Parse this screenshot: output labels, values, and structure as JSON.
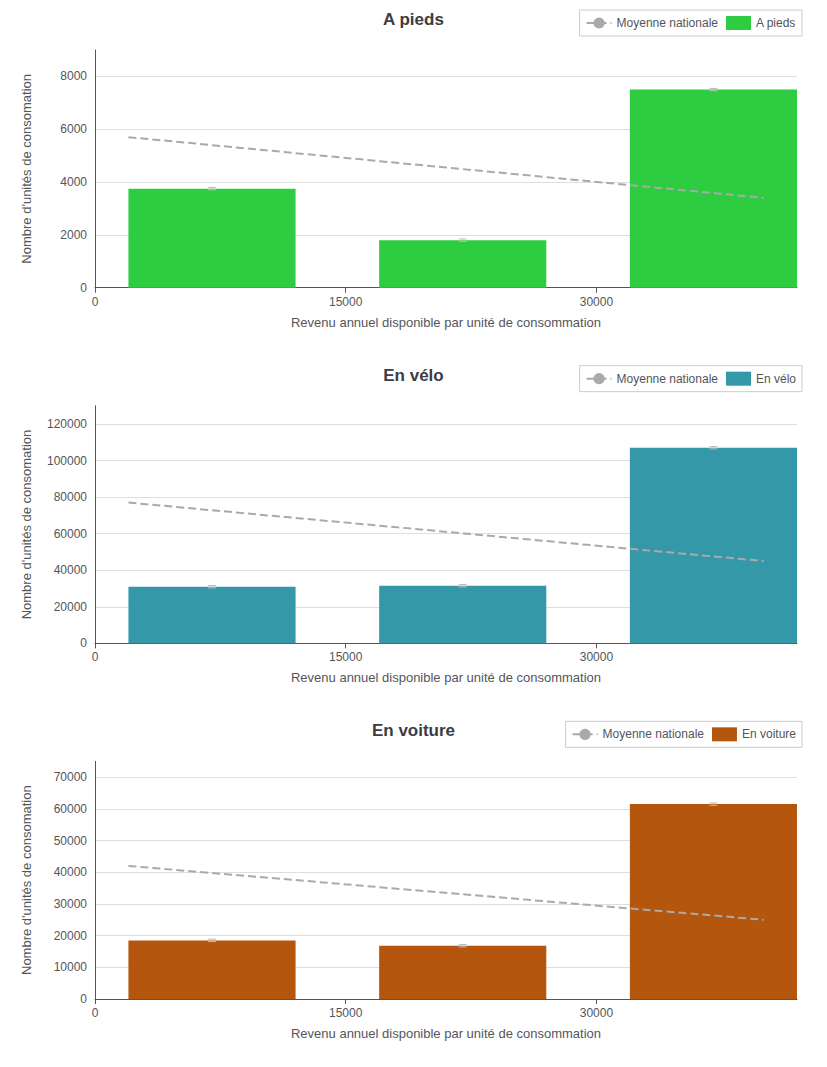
{
  "chart_data": [
    {
      "type": "bar",
      "title": "A pieds",
      "xlabel": "Revenu annuel disponible par unité de consommation",
      "ylabel": "Nombre d'unités de consomation",
      "xlim": [
        0,
        42000
      ],
      "ylim": [
        0,
        9000
      ],
      "xticks": [
        0,
        15000,
        30000
      ],
      "yticks": [
        0,
        2000,
        4000,
        6000,
        8000
      ],
      "grid": true,
      "legend": "upper right",
      "series": [
        {
          "name": "Moyenne nationale",
          "type": "line",
          "line_style": "dashed",
          "color": "#aaaaaa",
          "x": [
            2000,
            40000
          ],
          "values": [
            5700,
            3400
          ]
        },
        {
          "name": "A pieds",
          "type": "bar",
          "color": "#2ecc40",
          "x": [
            7000,
            22000,
            37000
          ],
          "widths": [
            10000,
            10000,
            10000
          ],
          "values": [
            3750,
            1800,
            7500
          ],
          "errors": [
            45,
            45,
            45
          ]
        }
      ]
    },
    {
      "type": "bar",
      "title": "En vélo",
      "xlabel": "Revenu annuel disponible par unité de consommation",
      "ylabel": "Nombre d'unités de consomation",
      "xlim": [
        0,
        42000
      ],
      "ylim": [
        0,
        130000
      ],
      "xticks": [
        0,
        15000,
        30000
      ],
      "yticks": [
        0,
        20000,
        40000,
        60000,
        80000,
        100000,
        120000
      ],
      "grid": true,
      "legend": "upper right",
      "series": [
        {
          "name": "Moyenne nationale",
          "type": "line",
          "line_style": "dashed",
          "color": "#aaaaaa",
          "x": [
            2000,
            40000
          ],
          "values": [
            77000,
            45000
          ]
        },
        {
          "name": "En vélo",
          "type": "bar",
          "color": "#3498a8",
          "x": [
            7000,
            22000,
            37000
          ],
          "widths": [
            10000,
            10000,
            10000
          ],
          "values": [
            31000,
            31500,
            107000
          ],
          "errors": [
            650,
            650,
            650
          ]
        }
      ]
    },
    {
      "type": "bar",
      "title": "En voiture",
      "xlabel": "Revenu annuel disponible par unité de consommation",
      "ylabel": "Nombre d'unités de consomation",
      "xlim": [
        0,
        42000
      ],
      "ylim": [
        0,
        75000
      ],
      "xticks": [
        0,
        15000,
        30000
      ],
      "yticks": [
        0,
        10000,
        20000,
        30000,
        40000,
        50000,
        60000,
        70000
      ],
      "grid": true,
      "legend": "upper right",
      "series": [
        {
          "name": "Moyenne nationale",
          "type": "line",
          "line_style": "dashed",
          "color": "#aaaaaa",
          "x": [
            2000,
            40000
          ],
          "values": [
            42000,
            25000
          ]
        },
        {
          "name": "En voiture",
          "type": "bar",
          "color": "#b5560e",
          "x": [
            7000,
            22000,
            37000
          ],
          "widths": [
            10000,
            10000,
            10000
          ],
          "values": [
            18500,
            16800,
            61500
          ],
          "errors": [
            375,
            375,
            375
          ]
        }
      ]
    }
  ]
}
